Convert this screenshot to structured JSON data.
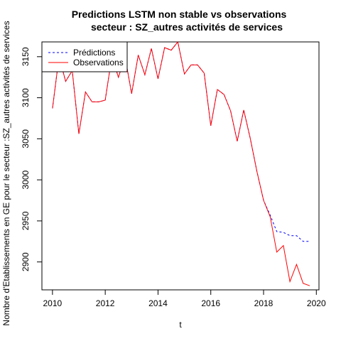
{
  "chart_data": {
    "type": "line",
    "title_line1": "Predictions LSTM non stable vs observations",
    "title_line2": "secteur : SZ_autres activités de services",
    "xlabel": "t",
    "ylabel": "Nombre d'Etablissements en GE pour le secteur :SZ_autres activités de services",
    "xlim": [
      2009.6,
      2020.1
    ],
    "ylim": [
      2866,
      3168
    ],
    "xticks": [
      2010,
      2012,
      2014,
      2016,
      2018,
      2020
    ],
    "yticks": [
      2900,
      2950,
      3000,
      3050,
      3100,
      3150
    ],
    "grid": false,
    "legend_position": "top-left",
    "x": [
      2010.0,
      2010.25,
      2010.5,
      2010.75,
      2011.0,
      2011.25,
      2011.5,
      2011.75,
      2012.0,
      2012.25,
      2012.5,
      2012.75,
      2013.0,
      2013.25,
      2013.5,
      2013.75,
      2014.0,
      2014.25,
      2014.5,
      2014.75,
      2015.0,
      2015.25,
      2015.5,
      2015.75,
      2016.0,
      2016.25,
      2016.5,
      2016.75,
      2017.0,
      2017.25,
      2017.5,
      2017.75,
      2018.0,
      2018.25,
      2018.5,
      2018.75,
      2019.0,
      2019.25,
      2019.5,
      2019.75
    ],
    "series": [
      {
        "name": "Prédictions",
        "color": "#0000ff",
        "dash": "dashed",
        "values": [
          3087,
          3150,
          3120,
          3133,
          3056,
          3107,
          3095,
          3095,
          3097,
          3150,
          3125,
          3150,
          3105,
          3152,
          3128,
          3160,
          3123,
          3161,
          3158,
          3168,
          3129,
          3140,
          3140,
          3130,
          3066,
          3110,
          3104,
          3084,
          3047,
          3085,
          3050,
          3010,
          2975,
          2957,
          2937,
          2936,
          2932,
          2932,
          2925,
          2925
        ]
      },
      {
        "name": "Observations",
        "color": "#ff0000",
        "dash": "solid",
        "values": [
          3087,
          3150,
          3120,
          3133,
          3056,
          3107,
          3095,
          3095,
          3097,
          3150,
          3125,
          3150,
          3105,
          3152,
          3128,
          3160,
          3123,
          3161,
          3158,
          3168,
          3129,
          3140,
          3140,
          3130,
          3066,
          3110,
          3104,
          3084,
          3047,
          3085,
          3050,
          3010,
          2975,
          2955,
          2912,
          2920,
          2876,
          2897,
          2874,
          2871
        ]
      }
    ]
  }
}
